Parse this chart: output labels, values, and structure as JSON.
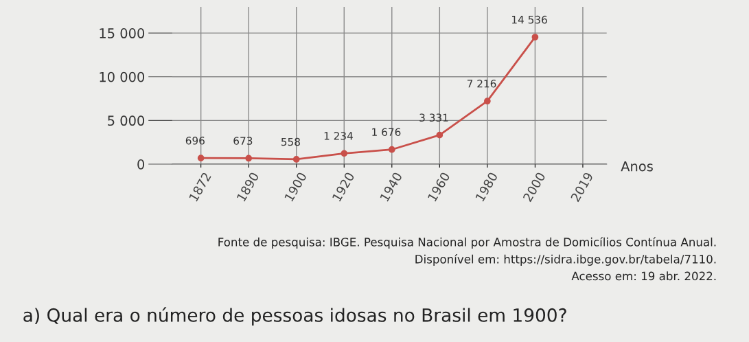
{
  "chart_data": {
    "type": "line",
    "xlabel": "Anos",
    "categories": [
      "1872",
      "1890",
      "1900",
      "1920",
      "1940",
      "1960",
      "1980",
      "2000",
      "2019"
    ],
    "series": [
      {
        "color": "#c9504a",
        "values": [
          696,
          673,
          558,
          1234,
          1676,
          3331,
          7216,
          14536,
          null
        ],
        "value_labels": [
          "696",
          "673",
          "558",
          "1 234",
          "1 676",
          "3 331",
          "7 216",
          "14 536",
          null
        ]
      }
    ],
    "ylim": [
      0,
      18000
    ],
    "yticks": [
      {
        "value": 0,
        "label": "0"
      },
      {
        "value": 5000,
        "label": "5 000"
      },
      {
        "value": 10000,
        "label": "10 000"
      },
      {
        "value": 15000,
        "label": "15 000"
      }
    ],
    "grid": true,
    "marker": "circle",
    "line_style": "solid",
    "annotations": [
      "Fonte de pesquisa: IBGE. Pesquisa Nacional por Amostra de Domicílios Contínua Anual.",
      "Disponível em: https://sidra.ibge.gov.br/tabela/7110.",
      "Acesso em: 19 abr. 2022.",
      "a) Qual era o número de pessoas idosas no Brasil em 1900?"
    ]
  }
}
